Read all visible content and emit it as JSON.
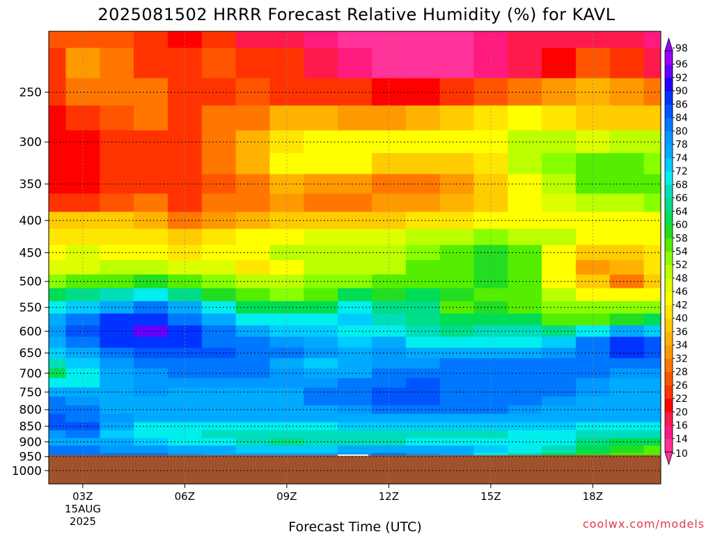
{
  "chart_data": {
    "type": "heatmap",
    "title": "2025081502 HRRR Forecast Relative Humidity (%) for KAVL",
    "xlabel": "Forecast Time (UTC)",
    "ylabel": "",
    "credit": "coolwx.com/models",
    "x_ticks": [
      {
        "label": "03Z",
        "value": 3
      },
      {
        "label": "06Z",
        "value": 6
      },
      {
        "label": "09Z",
        "value": 9
      },
      {
        "label": "12Z",
        "value": 12
      },
      {
        "label": "15Z",
        "value": 15
      },
      {
        "label": "18Z",
        "value": 18
      }
    ],
    "date_label": "15AUG",
    "year_label": "2025",
    "x_range": [
      2,
      20
    ],
    "y_axis": "pressure (log scale, inverted)",
    "y_ticks": [
      250,
      300,
      350,
      400,
      450,
      500,
      550,
      600,
      650,
      700,
      750,
      800,
      850,
      900,
      950,
      1000
    ],
    "y_range": [
      200,
      1050
    ],
    "grid": true,
    "surface_pressure": 945,
    "colorbar": {
      "levels": [
        10,
        14,
        16,
        20,
        22,
        26,
        28,
        32,
        34,
        36,
        40,
        42,
        46,
        48,
        52,
        54,
        58,
        60,
        64,
        66,
        68,
        72,
        74,
        78,
        80,
        84,
        86,
        90,
        92,
        96,
        98
      ],
      "colors": [
        "#ff3399",
        "#ff1a80",
        "#ff1a4d",
        "#ff0000",
        "#ff3300",
        "#ff5500",
        "#ff7700",
        "#ff9900",
        "#ffb300",
        "#ffcc00",
        "#ffe600",
        "#ffff00",
        "#ddff00",
        "#bbff00",
        "#88ff00",
        "#55ee00",
        "#22dd22",
        "#00dd55",
        "#00dd88",
        "#00ddbb",
        "#00eeee",
        "#00ccff",
        "#00aaff",
        "#0099ff",
        "#0077ff",
        "#0055ff",
        "#0033ff",
        "#2200ff",
        "#6600ff",
        "#9900ff"
      ]
    },
    "times": [
      2,
      3,
      4,
      5,
      6,
      7,
      8,
      9,
      10,
      11,
      12,
      13,
      14,
      15,
      16,
      17,
      18,
      19,
      20
    ],
    "pressures": [
      200,
      225,
      250,
      275,
      300,
      325,
      350,
      375,
      400,
      425,
      450,
      475,
      500,
      525,
      550,
      575,
      600,
      625,
      650,
      675,
      700,
      725,
      750,
      775,
      800,
      825,
      850,
      875,
      900,
      925,
      950
    ],
    "rh": [
      [
        26,
        26,
        26,
        22,
        20,
        22,
        18,
        16,
        14,
        12,
        12,
        12,
        12,
        14,
        16,
        16,
        18,
        16,
        14
      ],
      [
        24,
        32,
        30,
        24,
        22,
        26,
        24,
        22,
        16,
        14,
        12,
        12,
        12,
        14,
        16,
        20,
        26,
        22,
        16
      ],
      [
        22,
        28,
        30,
        28,
        24,
        24,
        26,
        24,
        22,
        22,
        20,
        20,
        22,
        26,
        30,
        32,
        34,
        32,
        30
      ],
      [
        20,
        22,
        26,
        28,
        22,
        28,
        30,
        34,
        34,
        32,
        32,
        34,
        38,
        40,
        42,
        40,
        38,
        36,
        36
      ],
      [
        20,
        20,
        24,
        24,
        22,
        28,
        34,
        40,
        44,
        42,
        42,
        42,
        42,
        44,
        48,
        50,
        46,
        48,
        50
      ],
      [
        20,
        20,
        22,
        22,
        22,
        28,
        34,
        42,
        44,
        44,
        38,
        36,
        36,
        40,
        48,
        52,
        54,
        56,
        52
      ],
      [
        20,
        20,
        22,
        22,
        22,
        26,
        28,
        34,
        32,
        32,
        30,
        30,
        32,
        38,
        44,
        50,
        54,
        54,
        56
      ],
      [
        24,
        24,
        26,
        28,
        24,
        28,
        30,
        32,
        28,
        30,
        32,
        32,
        34,
        38,
        42,
        46,
        50,
        50,
        52
      ],
      [
        36,
        36,
        36,
        34,
        30,
        32,
        34,
        36,
        36,
        38,
        38,
        40,
        40,
        42,
        42,
        42,
        44,
        44,
        44
      ],
      [
        40,
        40,
        40,
        40,
        38,
        40,
        42,
        44,
        46,
        46,
        46,
        48,
        50,
        52,
        50,
        48,
        44,
        44,
        44
      ],
      [
        42,
        46,
        44,
        42,
        40,
        42,
        44,
        48,
        48,
        48,
        48,
        52,
        54,
        58,
        54,
        44,
        36,
        38,
        40
      ],
      [
        46,
        46,
        48,
        48,
        46,
        46,
        40,
        44,
        50,
        50,
        50,
        54,
        56,
        58,
        54,
        44,
        32,
        34,
        40
      ],
      [
        52,
        54,
        56,
        58,
        54,
        52,
        48,
        48,
        52,
        52,
        54,
        56,
        56,
        58,
        56,
        44,
        36,
        30,
        38
      ],
      [
        62,
        64,
        66,
        70,
        64,
        58,
        54,
        52,
        56,
        60,
        58,
        60,
        58,
        56,
        54,
        48,
        44,
        42,
        44
      ],
      [
        70,
        72,
        76,
        80,
        76,
        68,
        62,
        60,
        62,
        68,
        64,
        64,
        56,
        58,
        56,
        52,
        52,
        52,
        52
      ],
      [
        76,
        82,
        86,
        88,
        82,
        74,
        70,
        68,
        70,
        72,
        66,
        64,
        60,
        62,
        60,
        56,
        56,
        58,
        60
      ],
      [
        78,
        84,
        88,
        92,
        86,
        80,
        76,
        72,
        72,
        70,
        70,
        66,
        64,
        66,
        66,
        64,
        68,
        74,
        72
      ],
      [
        76,
        82,
        86,
        88,
        86,
        82,
        80,
        78,
        76,
        72,
        74,
        70,
        70,
        70,
        70,
        72,
        80,
        88,
        84
      ],
      [
        72,
        76,
        82,
        84,
        84,
        84,
        82,
        80,
        78,
        76,
        78,
        76,
        76,
        74,
        74,
        78,
        82,
        86,
        84
      ],
      [
        66,
        72,
        78,
        80,
        82,
        82,
        80,
        76,
        72,
        74,
        78,
        78,
        80,
        80,
        80,
        80,
        82,
        80,
        80
      ],
      [
        60,
        68,
        74,
        78,
        80,
        80,
        80,
        78,
        74,
        76,
        80,
        82,
        82,
        82,
        82,
        80,
        80,
        78,
        78
      ],
      [
        68,
        70,
        74,
        78,
        78,
        78,
        78,
        78,
        78,
        80,
        82,
        84,
        82,
        80,
        80,
        80,
        78,
        76,
        76
      ],
      [
        76,
        74,
        76,
        78,
        76,
        76,
        74,
        76,
        80,
        82,
        84,
        84,
        82,
        80,
        80,
        80,
        78,
        76,
        76
      ],
      [
        80,
        78,
        76,
        76,
        74,
        74,
        74,
        76,
        80,
        82,
        84,
        84,
        82,
        80,
        80,
        78,
        76,
        76,
        76
      ],
      [
        82,
        80,
        76,
        74,
        74,
        74,
        74,
        74,
        76,
        78,
        80,
        80,
        80,
        80,
        78,
        76,
        74,
        74,
        74
      ],
      [
        84,
        82,
        78,
        74,
        74,
        74,
        74,
        74,
        74,
        76,
        76,
        76,
        76,
        76,
        76,
        74,
        74,
        74,
        74
      ],
      [
        84,
        84,
        74,
        70,
        70,
        70,
        70,
        70,
        70,
        72,
        72,
        72,
        72,
        72,
        72,
        72,
        70,
        70,
        70
      ],
      [
        78,
        80,
        72,
        68,
        68,
        66,
        66,
        66,
        66,
        66,
        66,
        66,
        66,
        66,
        68,
        68,
        66,
        66,
        66
      ],
      [
        76,
        76,
        74,
        72,
        70,
        68,
        66,
        64,
        66,
        66,
        66,
        68,
        70,
        70,
        70,
        70,
        64,
        62,
        60
      ],
      [
        80,
        80,
        78,
        78,
        76,
        74,
        72,
        72,
        72,
        74,
        76,
        76,
        74,
        72,
        70,
        66,
        60,
        58,
        56
      ],
      [
        82,
        82,
        80,
        80,
        78,
        76,
        74,
        74,
        76,
        78,
        80,
        78,
        74,
        70,
        66,
        62,
        58,
        56,
        54
      ]
    ]
  }
}
